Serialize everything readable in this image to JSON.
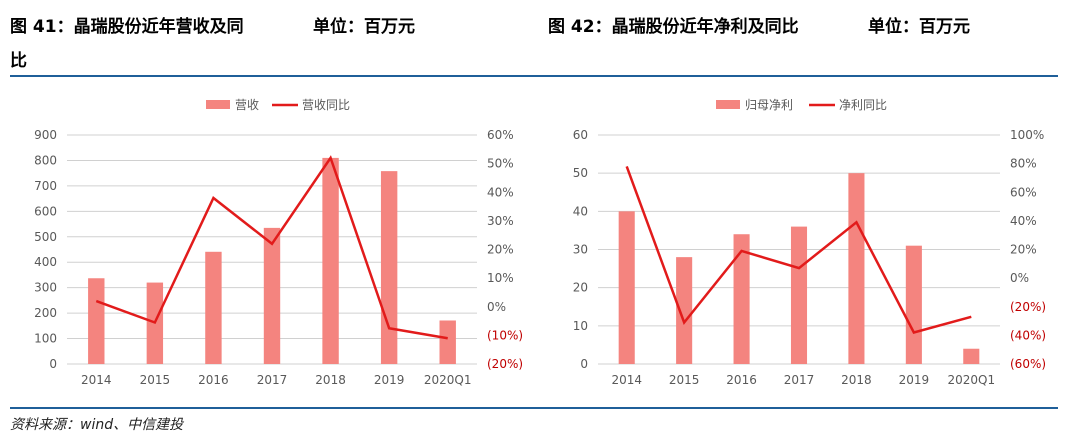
{
  "titles": {
    "left": {
      "text": "图 41：晶瑞股份近年营收及同比",
      "line1": "图 41：晶瑞股份近年营收及同",
      "line2": "比",
      "unit": "单位：百万元"
    },
    "right": {
      "text": "图 42：晶瑞股份近年净利及同比",
      "unit": "单位：百万元"
    }
  },
  "source": "资料来源：wind、中信建投",
  "colors": {
    "bar": "#f4847f",
    "line": "#e21b1b",
    "negative_label": "#c00000",
    "rule": "#1f5f99"
  },
  "chart_data": [
    {
      "type": "bar",
      "categories": [
        "2014",
        "2015",
        "2016",
        "2017",
        "2018",
        "2019",
        "2020Q1"
      ],
      "series": [
        {
          "name": "营收",
          "type": "bar",
          "axis": "left",
          "values": [
            337,
            320,
            441,
            535,
            810,
            758,
            171
          ]
        },
        {
          "name": "营收同比",
          "type": "line",
          "axis": "right",
          "values": [
            2,
            -5.5,
            38,
            22,
            52,
            -7.5,
            -11
          ]
        }
      ],
      "y_left": {
        "min": 0,
        "max": 900,
        "ticks": [
          "0",
          "100",
          "200",
          "300",
          "400",
          "500",
          "600",
          "700",
          "800",
          "900"
        ]
      },
      "y_right": {
        "min": -20,
        "max": 60,
        "ticks": [
          "(20%)",
          "(10%)",
          "0%",
          "10%",
          "20%",
          "30%",
          "40%",
          "50%",
          "60%"
        ]
      },
      "legend": "top",
      "grid": true
    },
    {
      "type": "bar",
      "categories": [
        "2014",
        "2015",
        "2016",
        "2017",
        "2018",
        "2019",
        "2020Q1"
      ],
      "series": [
        {
          "name": "归母净利",
          "type": "bar",
          "axis": "left",
          "values": [
            40,
            28,
            34,
            36,
            50,
            31,
            4
          ]
        },
        {
          "name": "净利同比",
          "type": "line",
          "axis": "right",
          "values": [
            78,
            -31,
            19,
            7,
            39,
            -38,
            -27
          ]
        }
      ],
      "y_left": {
        "min": 0,
        "max": 60,
        "ticks": [
          "0",
          "10",
          "20",
          "30",
          "40",
          "50",
          "60"
        ]
      },
      "y_right": {
        "min": -60,
        "max": 100,
        "ticks": [
          "(60%)",
          "(40%)",
          "(20%)",
          "0%",
          "20%",
          "40%",
          "60%",
          "80%",
          "100%"
        ]
      },
      "legend": "top",
      "grid": true
    }
  ]
}
